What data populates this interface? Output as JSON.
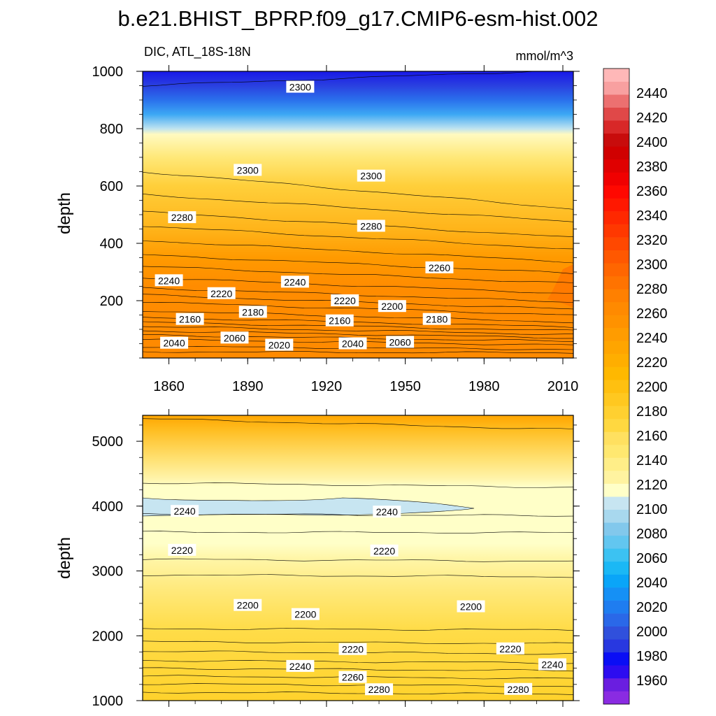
{
  "figure": {
    "title": "b.e21.BHIST_BPRP.f09_g17.CMIP6-esm-hist.002",
    "left_label": "DIC, ATL_18S-18N",
    "units": "mmol/m^3"
  },
  "chart_data": [
    {
      "type": "contour",
      "panel": "upper",
      "ylabel": "depth",
      "xlim": [
        1850,
        2014
      ],
      "ylim": [
        1000,
        0
      ],
      "x_ticks": [
        1860,
        1890,
        1920,
        1950,
        1980,
        2010
      ],
      "y_ticks": [
        200,
        400,
        600,
        800,
        1000
      ],
      "isolines": [
        {
          "level": 2020,
          "depth_start": 22,
          "depth_end": 18
        },
        {
          "level": 2040,
          "depth_start": 40,
          "depth_end": 30
        },
        {
          "level": 2060,
          "depth_start": 65,
          "depth_end": 45
        },
        {
          "level": 2080,
          "depth_start": 80,
          "depth_end": 58
        },
        {
          "level": 2100,
          "depth_start": 95,
          "depth_end": 70
        },
        {
          "level": 2120,
          "depth_start": 110,
          "depth_end": 82
        },
        {
          "level": 2140,
          "depth_start": 125,
          "depth_end": 95
        },
        {
          "level": 2160,
          "depth_start": 142,
          "depth_end": 108
        },
        {
          "level": 2180,
          "depth_start": 165,
          "depth_end": 125
        },
        {
          "level": 2200,
          "depth_start": 195,
          "depth_end": 150
        },
        {
          "level": 2210,
          "depth_start": 220,
          "depth_end": 170
        },
        {
          "level": 2220,
          "depth_start": 245,
          "depth_end": 195
        },
        {
          "level": 2230,
          "depth_start": 280,
          "depth_end": 225
        },
        {
          "level": 2240,
          "depth_start": 320,
          "depth_end": 260
        },
        {
          "level": 2250,
          "depth_start": 360,
          "depth_end": 295
        },
        {
          "level": 2260,
          "depth_start": 410,
          "depth_end": 335
        },
        {
          "level": 2270,
          "depth_start": 460,
          "depth_end": 380
        },
        {
          "level": 2280,
          "depth_start": 510,
          "depth_end": 420
        },
        {
          "level": 2290,
          "depth_start": 570,
          "depth_end": 475
        },
        {
          "level": 2300,
          "depth_start": 650,
          "depth_end": 520
        },
        {
          "level": 2300,
          "depth_start": 950,
          "depth_end": 1005
        }
      ],
      "labels": [
        {
          "text": "2040",
          "x": 1862,
          "depth": 52
        },
        {
          "text": "2060",
          "x": 1885,
          "depth": 70
        },
        {
          "text": "2020",
          "x": 1902,
          "depth": 45
        },
        {
          "text": "2040",
          "x": 1930,
          "depth": 50
        },
        {
          "text": "2060",
          "x": 1948,
          "depth": 55
        },
        {
          "text": "2160",
          "x": 1868,
          "depth": 135
        },
        {
          "text": "2180",
          "x": 1892,
          "depth": 160
        },
        {
          "text": "2160",
          "x": 1925,
          "depth": 130
        },
        {
          "text": "2180",
          "x": 1962,
          "depth": 135
        },
        {
          "text": "2200",
          "x": 1945,
          "depth": 180
        },
        {
          "text": "2220",
          "x": 1880,
          "depth": 225
        },
        {
          "text": "2220",
          "x": 1927,
          "depth": 200
        },
        {
          "text": "2240",
          "x": 1860,
          "depth": 270
        },
        {
          "text": "2240",
          "x": 1908,
          "depth": 265
        },
        {
          "text": "2260",
          "x": 1963,
          "depth": 315
        },
        {
          "text": "2280",
          "x": 1865,
          "depth": 490
        },
        {
          "text": "2280",
          "x": 1937,
          "depth": 460
        },
        {
          "text": "2300",
          "x": 1890,
          "depth": 655
        },
        {
          "text": "2300",
          "x": 1937,
          "depth": 635
        },
        {
          "text": "2300",
          "x": 1910,
          "depth": 945
        }
      ]
    },
    {
      "type": "contour",
      "panel": "lower",
      "ylabel": "depth",
      "xlim": [
        1850,
        2014
      ],
      "ylim": [
        5400,
        1000
      ],
      "x_ticks": [
        1860,
        1890,
        1920,
        1950,
        1980,
        2010
      ],
      "y_ticks": [
        1000,
        2000,
        3000,
        4000,
        5000
      ],
      "isolines": [
        {
          "level": 2280,
          "depth_start": 1130,
          "depth_end": 1100
        },
        {
          "level": 2270,
          "depth_start": 1260,
          "depth_end": 1220
        },
        {
          "level": 2260,
          "depth_start": 1380,
          "depth_end": 1340
        },
        {
          "level": 2250,
          "depth_start": 1500,
          "depth_end": 1460
        },
        {
          "level": 2240,
          "depth_start": 1620,
          "depth_end": 1580
        },
        {
          "level": 2230,
          "depth_start": 1760,
          "depth_end": 1720
        },
        {
          "level": 2220,
          "depth_start": 1910,
          "depth_end": 1880
        },
        {
          "level": 2210,
          "depth_start": 2110,
          "depth_end": 2090
        },
        {
          "level": 2210,
          "depth_start": 2940,
          "depth_end": 2910
        },
        {
          "level": 2220,
          "depth_start": 3180,
          "depth_end": 3150
        },
        {
          "level": 2230,
          "depth_start": 3600,
          "depth_end": 3590
        },
        {
          "level": 2240,
          "depth_start": 3880,
          "depth_end": 3850
        },
        {
          "level": 2250,
          "depth_start": 4360,
          "depth_end": 4290
        },
        {
          "level": 2260,
          "depth_start": 5350,
          "depth_end": 5180
        }
      ],
      "labels": [
        {
          "text": "2280",
          "x": 1940,
          "depth": 1170
        },
        {
          "text": "2280",
          "x": 1993,
          "depth": 1175
        },
        {
          "text": "2260",
          "x": 1930,
          "depth": 1360
        },
        {
          "text": "2240",
          "x": 1910,
          "depth": 1530
        },
        {
          "text": "2240",
          "x": 2006,
          "depth": 1555
        },
        {
          "text": "2220",
          "x": 1930,
          "depth": 1790
        },
        {
          "text": "2220",
          "x": 1990,
          "depth": 1800
        },
        {
          "text": "2200",
          "x": 1912,
          "depth": 2330
        },
        {
          "text": "2200",
          "x": 1890,
          "depth": 2470
        },
        {
          "text": "2200",
          "x": 1975,
          "depth": 2450
        },
        {
          "text": "2220",
          "x": 1865,
          "depth": 3320
        },
        {
          "text": "2220",
          "x": 1942,
          "depth": 3310
        },
        {
          "text": "2240",
          "x": 1866,
          "depth": 3920
        },
        {
          "text": "2240",
          "x": 1943,
          "depth": 3910
        }
      ]
    }
  ],
  "colorbar": {
    "levels": [
      1960,
      1980,
      2000,
      2020,
      2040,
      2060,
      2080,
      2100,
      2120,
      2140,
      2160,
      2180,
      2200,
      2220,
      2240,
      2260,
      2280,
      2300,
      2320,
      2340,
      2360,
      2380,
      2400,
      2420,
      2440
    ],
    "colors": [
      "#8a2be2",
      "#6a1ee0",
      "#2d0cf0",
      "#0a0ef5",
      "#2838e0",
      "#3050dc",
      "#2a68e8",
      "#1f7df0",
      "#1590f5",
      "#0aa5f8",
      "#1bb8f5",
      "#3cc2f2",
      "#62c6f0",
      "#82c8ec",
      "#a8d8ee",
      "#c7e5f1",
      "#ffffc8",
      "#fff3a0",
      "#ffee88",
      "#ffe870",
      "#ffe060",
      "#ffd840",
      "#ffd030",
      "#ffc820",
      "#ffc010",
      "#ffb800",
      "#ffae00",
      "#ffa500",
      "#ff9c00",
      "#ff9200",
      "#ff8a00",
      "#ff8000",
      "#ff7300",
      "#ff6600",
      "#ff5800",
      "#ff4800",
      "#ff3800",
      "#ff2800",
      "#ff1800",
      "#ff0800",
      "#f00000",
      "#e00000",
      "#d00000",
      "#c80c0c",
      "#d82828",
      "#e04848",
      "#ec7070",
      "#f8a0a0",
      "#ffb8b8"
    ]
  }
}
